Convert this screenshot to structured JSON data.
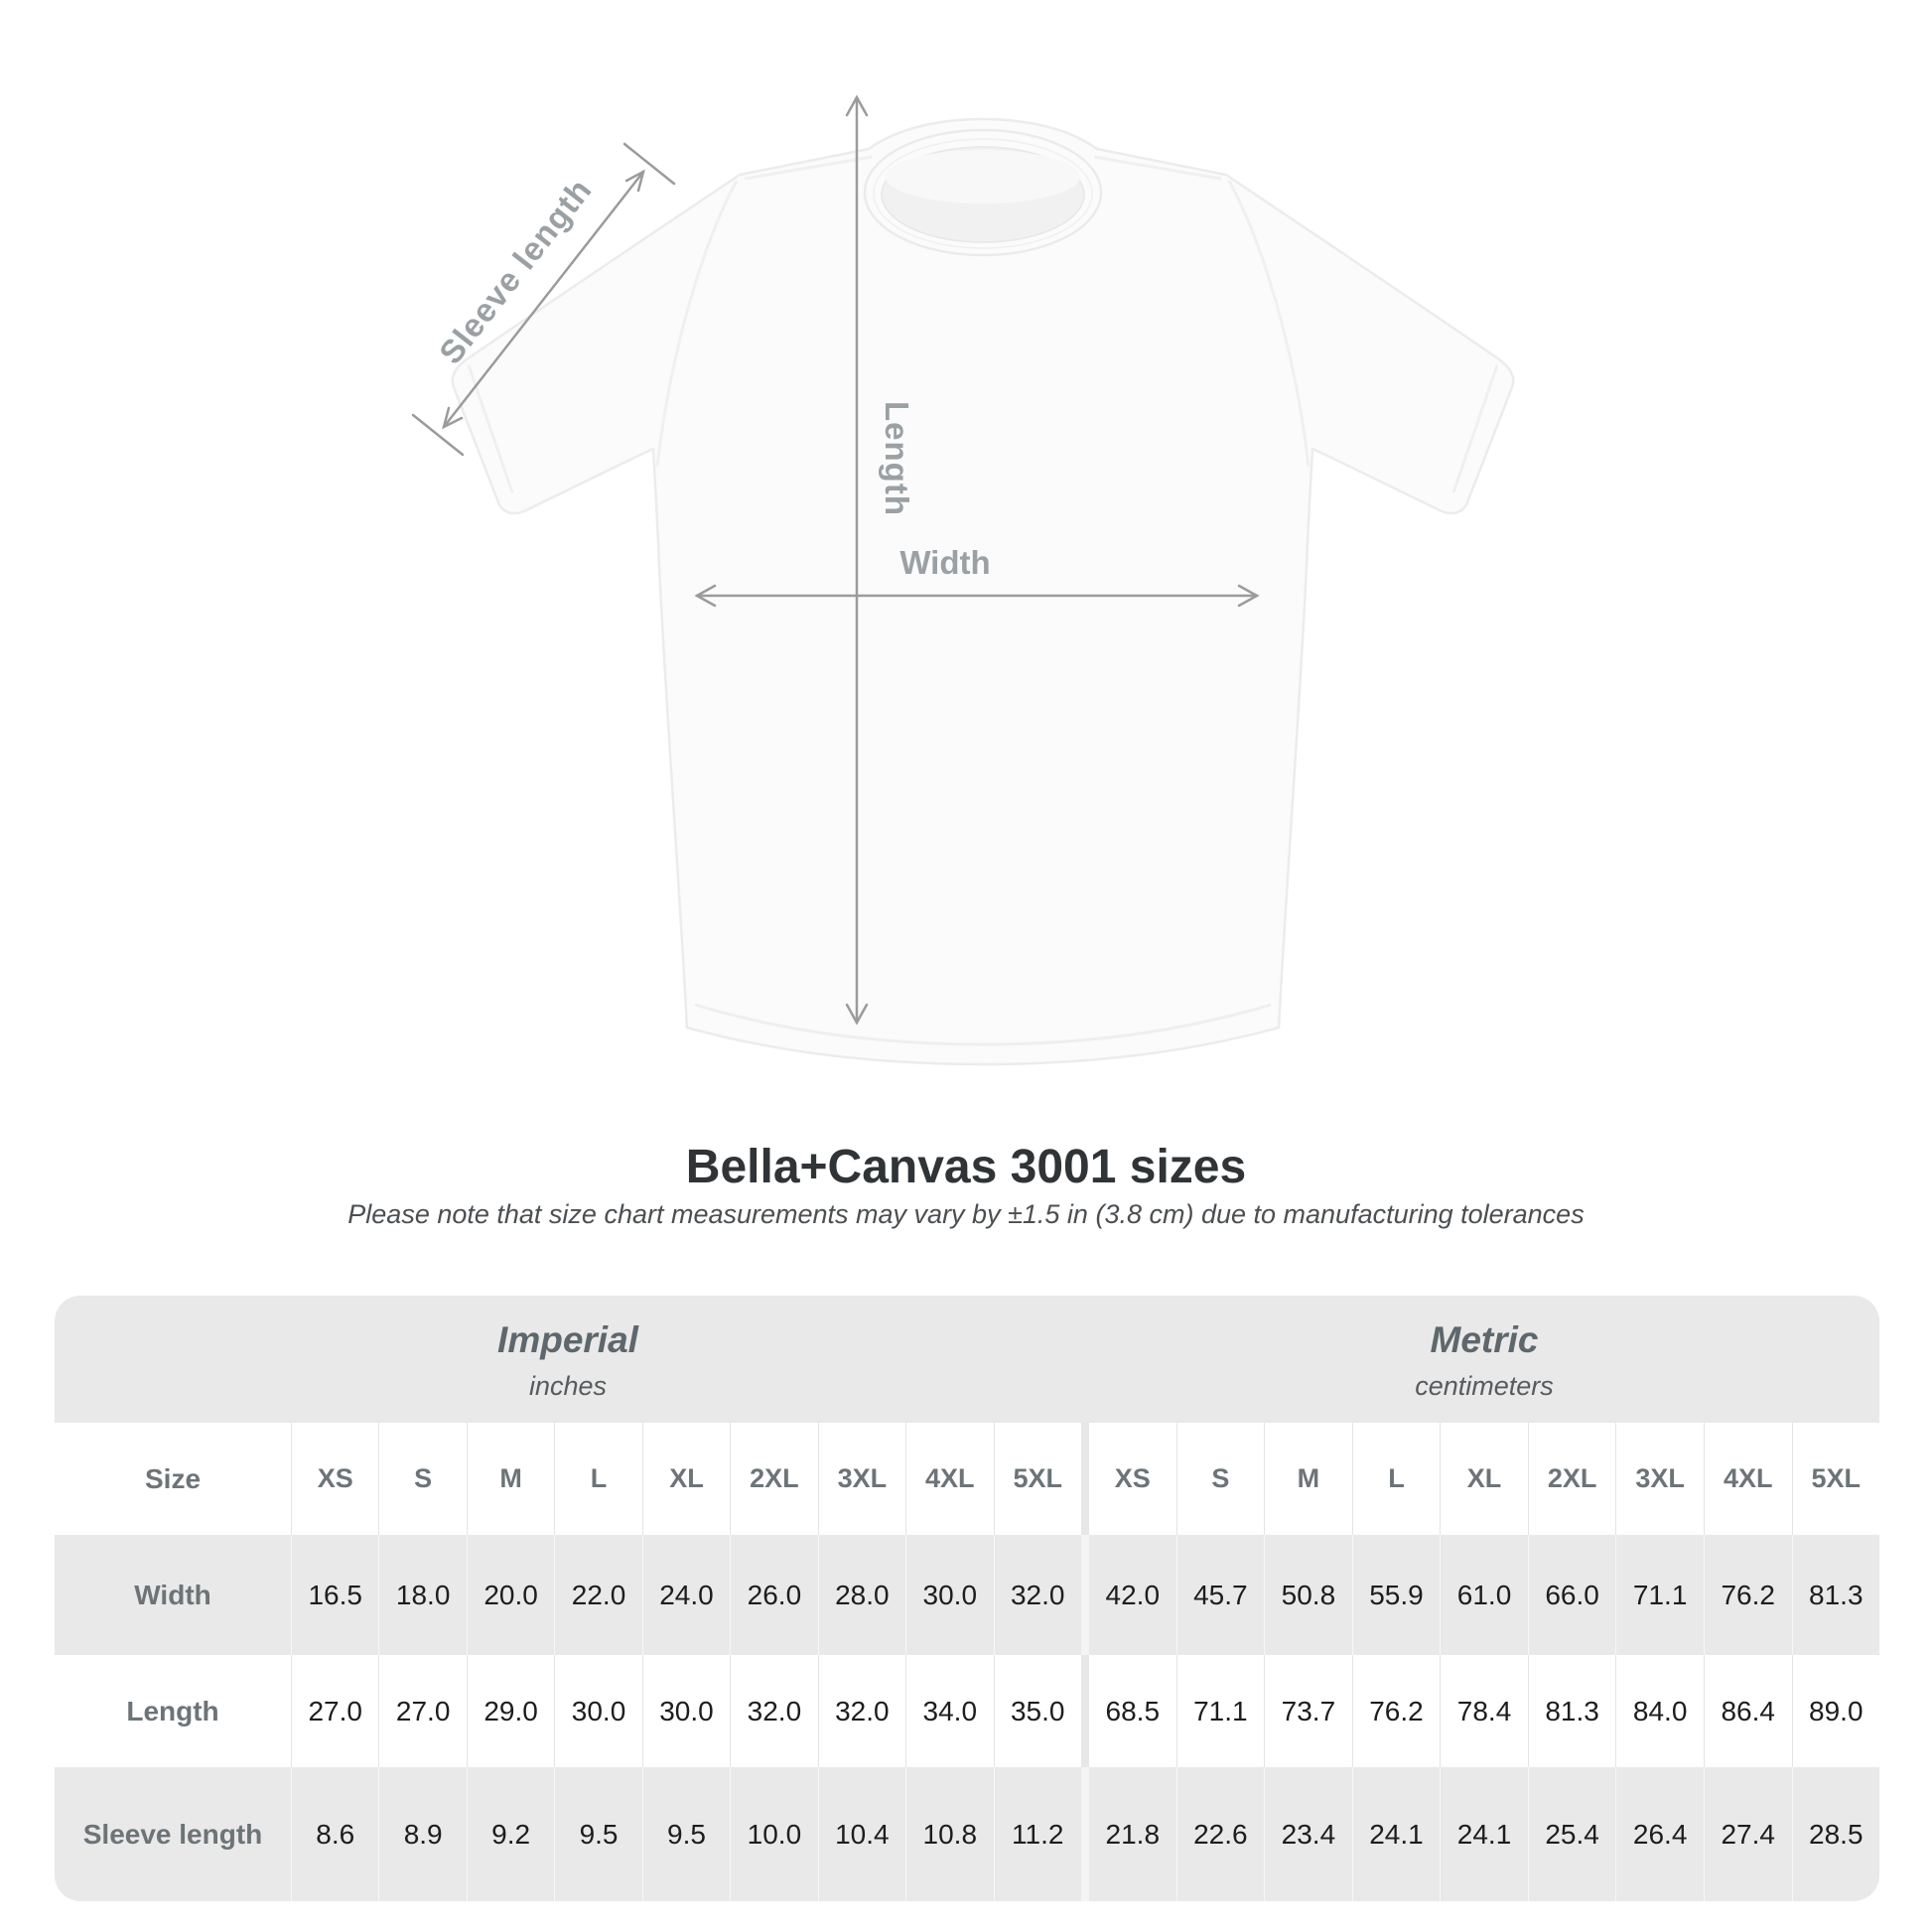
{
  "title": "Bella+Canvas 3001 sizes",
  "subtitle": "Please note that size chart measurements may vary by ±1.5 in (3.8 cm) due to manufacturing tolerances",
  "diagram": {
    "sleeve_label": "Sleeve length",
    "length_label": "Length",
    "width_label": "Width"
  },
  "table": {
    "groups": [
      {
        "label": "Imperial",
        "sublabel": "inches"
      },
      {
        "label": "Metric",
        "sublabel": "centimeters"
      }
    ],
    "size_header": {
      "label": "Size",
      "imperial": [
        "XS",
        "S",
        "M",
        "L",
        "XL",
        "2XL",
        "3XL",
        "4XL",
        "5XL"
      ],
      "metric": [
        "XS",
        "S",
        "M",
        "L",
        "XL",
        "2XL",
        "3XL",
        "4XL",
        "5XL"
      ]
    },
    "rows": [
      {
        "label": "Width",
        "imperial": [
          "16.5",
          "18.0",
          "20.0",
          "22.0",
          "24.0",
          "26.0",
          "28.0",
          "30.0",
          "32.0"
        ],
        "metric": [
          "42.0",
          "45.7",
          "50.8",
          "55.9",
          "61.0",
          "66.0",
          "71.1",
          "76.2",
          "81.3"
        ]
      },
      {
        "label": "Length",
        "imperial": [
          "27.0",
          "27.0",
          "29.0",
          "30.0",
          "30.0",
          "32.0",
          "32.0",
          "34.0",
          "35.0"
        ],
        "metric": [
          "68.5",
          "71.1",
          "73.7",
          "76.2",
          "78.4",
          "81.3",
          "84.0",
          "86.4",
          "89.0"
        ]
      },
      {
        "label": "Sleeve length",
        "imperial": [
          "8.6",
          "8.9",
          "9.2",
          "9.5",
          "9.5",
          "10.0",
          "10.4",
          "10.8",
          "11.2"
        ],
        "metric": [
          "21.8",
          "22.6",
          "23.4",
          "24.1",
          "24.1",
          "25.4",
          "26.4",
          "27.4",
          "28.5"
        ]
      }
    ]
  },
  "colors": {
    "table_gray": "#e9e9e9",
    "annotation_gray": "#9b9b9b",
    "header_text": "#6d7478",
    "data_text": "#1d1d1f",
    "title_text": "#303436"
  },
  "chart_data": {
    "type": "table",
    "title": "Bella+Canvas 3001 sizes",
    "tolerance_note": "±1.5 in (3.8 cm)",
    "units": {
      "imperial": "inches",
      "metric": "centimeters"
    },
    "sizes": [
      "XS",
      "S",
      "M",
      "L",
      "XL",
      "2XL",
      "3XL",
      "4XL",
      "5XL"
    ],
    "measurements": [
      {
        "name": "Width",
        "imperial": [
          16.5,
          18.0,
          20.0,
          22.0,
          24.0,
          26.0,
          28.0,
          30.0,
          32.0
        ],
        "metric": [
          42.0,
          45.7,
          50.8,
          55.9,
          61.0,
          66.0,
          71.1,
          76.2,
          81.3
        ]
      },
      {
        "name": "Length",
        "imperial": [
          27.0,
          27.0,
          29.0,
          30.0,
          30.0,
          32.0,
          32.0,
          34.0,
          35.0
        ],
        "metric": [
          68.5,
          71.1,
          73.7,
          76.2,
          78.4,
          81.3,
          84.0,
          86.4,
          89.0
        ]
      },
      {
        "name": "Sleeve length",
        "imperial": [
          8.6,
          8.9,
          9.2,
          9.5,
          9.5,
          10.0,
          10.4,
          10.8,
          11.2
        ],
        "metric": [
          21.8,
          22.6,
          23.4,
          24.1,
          24.1,
          25.4,
          26.4,
          27.4,
          28.5
        ]
      }
    ]
  }
}
